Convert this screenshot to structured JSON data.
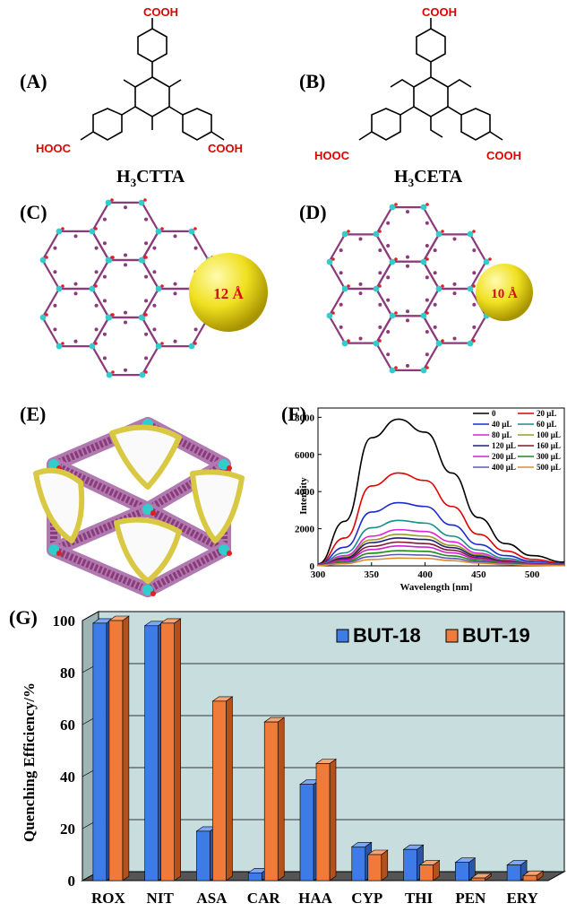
{
  "panels": {
    "A": "(A)",
    "B": "(B)",
    "C": "(C)",
    "D": "(D)",
    "E": "(E)",
    "F": "(F)",
    "G": "(G)"
  },
  "molecules": {
    "cooh": "COOH",
    "hooc": "HOOC",
    "a_name": {
      "prefix": "H",
      "sub": "3",
      "suffix": "CTTA"
    },
    "b_name": {
      "prefix": "H",
      "sub": "3",
      "suffix": "CETA"
    }
  },
  "pores": {
    "c_label": "12 Å",
    "d_label": "10 Å"
  },
  "colors": {
    "framework": "#8b3a7a",
    "node": "#33cccc",
    "oxygen": "#e02020",
    "pore_sphere": "#f0e020",
    "but18": "#3d7be6",
    "but19": "#f07a3a",
    "wall": "#c8dede"
  },
  "chart_data": [
    {
      "type": "line",
      "xlabel": "Wavelength [nm]",
      "ylabel": "Intensity",
      "xlim": [
        300,
        530
      ],
      "ylim": [
        0,
        8500
      ],
      "xticks": [
        300,
        350,
        400,
        450,
        500
      ],
      "yticks": [
        0,
        2000,
        4000,
        6000,
        8000
      ],
      "legend_position": "top-right",
      "x": [
        300,
        325,
        350,
        375,
        400,
        425,
        450,
        475,
        500,
        530
      ],
      "series": [
        {
          "name": "0",
          "color": "#000000",
          "values": [
            100,
            2400,
            6900,
            7900,
            7200,
            5000,
            2600,
            1200,
            550,
            200
          ]
        },
        {
          "name": "20 μL",
          "color": "#e00000",
          "values": [
            80,
            1500,
            4300,
            5000,
            4600,
            3200,
            1700,
            800,
            350,
            130
          ]
        },
        {
          "name": "40 μL",
          "color": "#1c2bd0",
          "values": [
            70,
            1000,
            2900,
            3400,
            3200,
            2200,
            1150,
            550,
            250,
            90
          ]
        },
        {
          "name": "60 μL",
          "color": "#1c8c8c",
          "values": [
            60,
            700,
            2050,
            2450,
            2300,
            1600,
            850,
            400,
            180,
            70
          ]
        },
        {
          "name": "80 μL",
          "color": "#e020e0",
          "values": [
            50,
            550,
            1600,
            1950,
            1850,
            1300,
            680,
            320,
            150,
            60
          ]
        },
        {
          "name": "100 μL",
          "color": "#9a9a20",
          "values": [
            45,
            470,
            1400,
            1700,
            1600,
            1100,
            590,
            280,
            130,
            50
          ]
        },
        {
          "name": "120 μL",
          "color": "#20207a",
          "values": [
            40,
            420,
            1250,
            1500,
            1420,
            980,
            520,
            250,
            115,
            45
          ]
        },
        {
          "name": "160 μL",
          "color": "#7a1c2c",
          "values": [
            35,
            360,
            1050,
            1280,
            1200,
            840,
            440,
            210,
            95,
            40
          ]
        },
        {
          "name": "200 μL",
          "color": "#d020d0",
          "values": [
            30,
            300,
            880,
            1070,
            1010,
            700,
            370,
            180,
            80,
            35
          ]
        },
        {
          "name": "300 μL",
          "color": "#1c8c1c",
          "values": [
            25,
            230,
            680,
            820,
            780,
            540,
            290,
            140,
            60,
            25
          ]
        },
        {
          "name": "400 μL",
          "color": "#5a5ab0",
          "values": [
            20,
            180,
            500,
            610,
            580,
            400,
            215,
            100,
            45,
            20
          ]
        },
        {
          "name": "500 μL",
          "color": "#e08a30",
          "values": [
            15,
            120,
            340,
            420,
            400,
            280,
            150,
            70,
            30,
            15
          ]
        }
      ]
    },
    {
      "type": "bar",
      "ylabel": "Quenching Efficiency/%",
      "ylim": [
        0,
        100
      ],
      "yticks": [
        0,
        20,
        40,
        60,
        80,
        100
      ],
      "grid": true,
      "legend_position": "top-right",
      "categories": [
        "ROX",
        "NIT",
        "ASA",
        "CAR",
        "HAA",
        "CYP",
        "THI",
        "PEN",
        "ERY"
      ],
      "series": [
        {
          "name": "BUT-18",
          "values": [
            99,
            98,
            19,
            3,
            37,
            13,
            12,
            7,
            6
          ]
        },
        {
          "name": "BUT-19",
          "values": [
            100,
            99,
            69,
            61,
            45,
            10,
            6,
            1,
            2
          ]
        }
      ]
    }
  ]
}
